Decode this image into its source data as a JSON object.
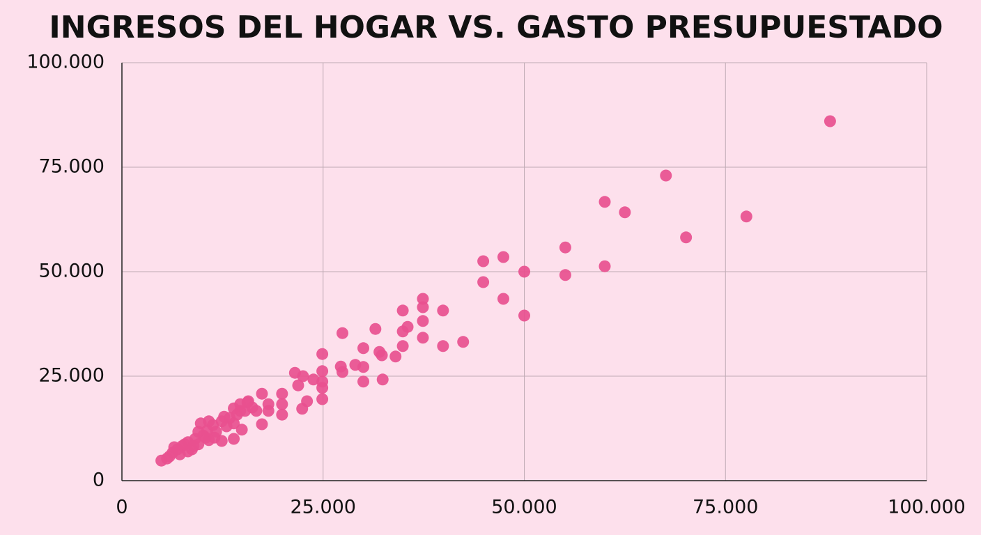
{
  "chart_data": {
    "type": "scatter",
    "title": "INGRESOS DEL HOGAR VS. GASTO PRESUPUESTADO",
    "color": "#e8508f",
    "grid": true,
    "xlim": [
      0,
      100000
    ],
    "ylim": [
      0,
      100000
    ],
    "xticks": [
      0,
      {
        "value": 25000,
        "label": "25.000"
      },
      {
        "value": 50000,
        "label": "50.000"
      },
      {
        "value": 75000,
        "label": "75.000"
      },
      {
        "value": 100000,
        "label": "100.000"
      }
    ],
    "yticks": [
      0,
      {
        "value": 25000,
        "label": "25.000"
      },
      {
        "value": 50000,
        "label": "50.000"
      },
      {
        "value": 75000,
        "label": "75.000"
      },
      {
        "value": 100000,
        "label": "100.000"
      }
    ],
    "x": [
      88000,
      67600,
      77600,
      70100,
      60000,
      62500,
      60000,
      55100,
      55100,
      50000,
      50000,
      44900,
      47400,
      44900,
      47400,
      37400,
      37400,
      34900,
      39900,
      37400,
      35500,
      34900,
      31500,
      37400,
      34900,
      39900,
      42400,
      30000,
      32000,
      32300,
      34000,
      27400,
      24900,
      27200,
      27400,
      29000,
      30000,
      30000,
      32400,
      24900,
      24900,
      24900,
      24900,
      23000,
      22400,
      21500,
      22500,
      23800,
      21900,
      19900,
      19900,
      19900,
      17400,
      17400,
      18200,
      15600,
      14700,
      13900,
      14900,
      13900,
      4900,
      5600,
      6300,
      6900,
      7500,
      7200,
      8200,
      8700,
      9100,
      9500,
      9800,
      10100,
      10600,
      10800,
      11300,
      11700,
      12400,
      12400,
      13000,
      13400,
      14300,
      14700,
      15300,
      15700,
      16200,
      16700,
      18200,
      8200,
      10400,
      11500,
      9500,
      12700,
      13900,
      5900,
      7800,
      8900,
      10800,
      6500
    ],
    "y": [
      86000,
      73000,
      63200,
      58200,
      66700,
      64200,
      51300,
      55800,
      49200,
      50000,
      39500,
      52500,
      53500,
      47500,
      43500,
      43500,
      41500,
      40700,
      40700,
      38200,
      36800,
      35700,
      36300,
      34200,
      32200,
      32200,
      33200,
      31700,
      30800,
      30000,
      29700,
      35300,
      30300,
      27300,
      26000,
      27700,
      27200,
      23700,
      24200,
      26200,
      23700,
      22200,
      19500,
      19000,
      17200,
      25800,
      25000,
      24200,
      22800,
      20800,
      18300,
      15800,
      20800,
      13500,
      18300,
      18700,
      16700,
      17300,
      12200,
      10000,
      4800,
      5300,
      6700,
      7500,
      8300,
      6300,
      9200,
      7500,
      10000,
      8700,
      13700,
      10800,
      12000,
      9700,
      13300,
      11700,
      14200,
      9500,
      13000,
      15000,
      15800,
      18300,
      16700,
      19000,
      17500,
      16700,
      16700,
      7000,
      10300,
      10300,
      11700,
      15300,
      13700,
      5800,
      8700,
      8300,
      14200,
      8000
    ]
  }
}
